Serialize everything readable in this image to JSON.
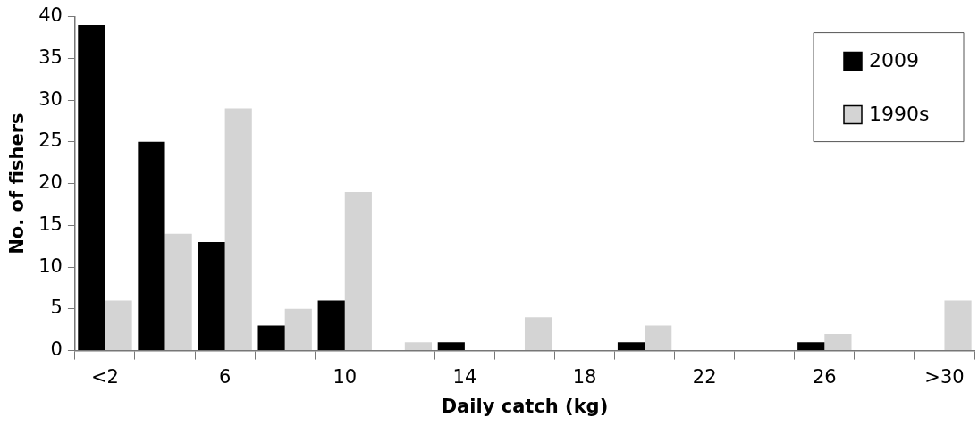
{
  "chart_data": {
    "type": "bar",
    "xlabel": "Daily catch (kg)",
    "ylabel": "No. of fishers",
    "categories": [
      "<2",
      null,
      "6",
      null,
      "10",
      null,
      "14",
      null,
      "18",
      null,
      "22",
      null,
      "26",
      null,
      ">30"
    ],
    "series": [
      {
        "name": "2009",
        "color": "#000000",
        "values": [
          39,
          25,
          13,
          3,
          6,
          0,
          1,
          0,
          0,
          1,
          0,
          0,
          1,
          0,
          0
        ]
      },
      {
        "name": "1990s",
        "color": "#d4d4d4",
        "values": [
          6,
          14,
          29,
          5,
          19,
          1,
          0,
          4,
          0,
          3,
          0,
          0,
          2,
          0,
          6
        ]
      }
    ],
    "ylim": [
      0,
      40
    ],
    "yticks": [
      0,
      5,
      10,
      15,
      20,
      25,
      30,
      35,
      40
    ],
    "grid": false,
    "legend": "top right"
  }
}
